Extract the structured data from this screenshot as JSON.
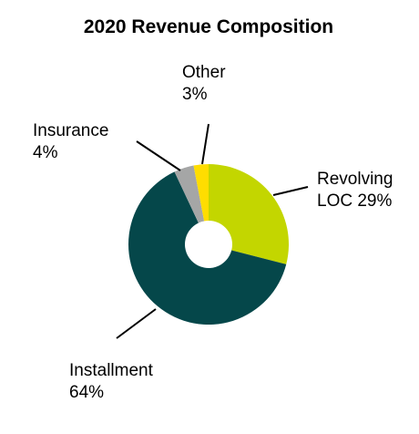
{
  "chart_data": {
    "type": "pie",
    "title": "2020 Revenue Composition",
    "donut": true,
    "start": "12 o'clock",
    "direction": "clockwise",
    "slices": [
      {
        "name": "Revolving LOC",
        "value": 29,
        "label_lines": [
          "Revolving",
          "LOC 29%"
        ],
        "color": "#c3d600"
      },
      {
        "name": "Installment",
        "value": 64,
        "label_lines": [
          "Installment",
          "64%"
        ],
        "color": "#05474a"
      },
      {
        "name": "Insurance",
        "value": 4,
        "label_lines": [
          "Insurance",
          "4%"
        ],
        "color": "#a5a6a6"
      },
      {
        "name": "Other",
        "value": 3,
        "label_lines": [
          "Other",
          "3%"
        ],
        "color": "#ffdd00"
      }
    ]
  }
}
